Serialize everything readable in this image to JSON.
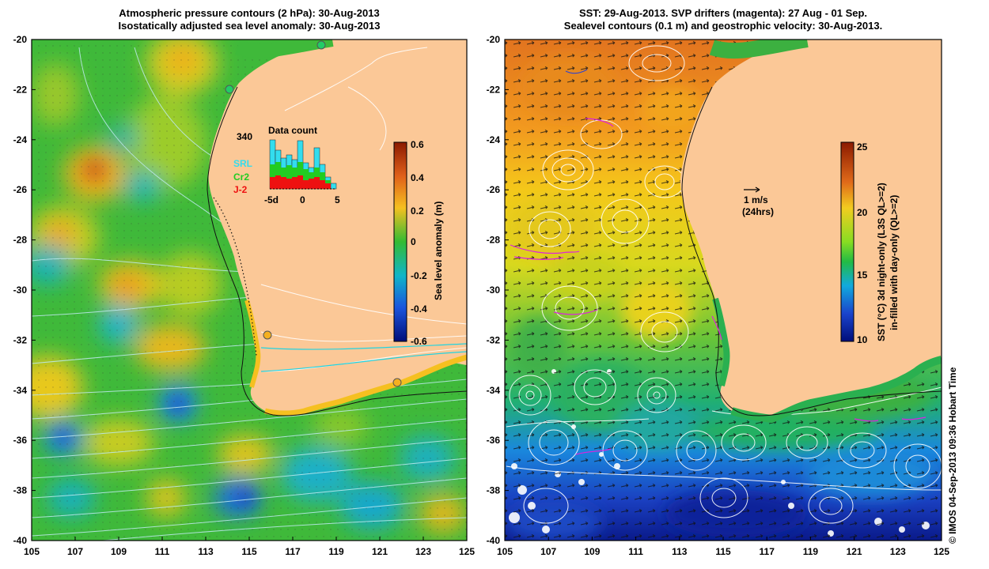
{
  "left_panel": {
    "title_line1": "Atmospheric pressure contours (2 hPa): 30-Aug-2013",
    "title_line2": "Isostatically adjusted sea level anomaly: 30-Aug-2013",
    "colorbar_label": "Sea level anomaly (m)",
    "colorbar_ticks": [
      "0.6",
      "0.4",
      "0.2",
      "0",
      "-0.2",
      "-0.4",
      "-0.6"
    ],
    "inset": {
      "title": "Data count",
      "max_label": "340",
      "x_ticks": [
        "-5d",
        "0",
        "5"
      ],
      "legend": [
        {
          "label": "SRL",
          "color": "#33ddee"
        },
        {
          "label": "Cr2",
          "color": "#22cc22"
        },
        {
          "label": "J-2",
          "color": "#ee1111"
        }
      ]
    }
  },
  "right_panel": {
    "title_line1": "SST: 29-Aug-2013. SVP drifters (magenta): 27 Aug - 01 Sep.",
    "title_line2": "Sealevel contours (0.1 m) and geostrophic velocity: 30-Aug-2013.",
    "colorbar_label_line1": "SST (°C) 3d night-only (L3S QL>=2)",
    "colorbar_label_line2": "in-filled with day-only (QL>=2)",
    "colorbar_ticks": [
      "25",
      "20",
      "15",
      "10"
    ],
    "velocity_key_line1": "1 m/s",
    "velocity_key_line2": "(24hrs)"
  },
  "axes": {
    "x_ticks": [
      "105",
      "107",
      "109",
      "111",
      "113",
      "115",
      "117",
      "119",
      "121",
      "123",
      "125"
    ],
    "y_ticks": [
      "-20",
      "-22",
      "-24",
      "-26",
      "-28",
      "-30",
      "-32",
      "-34",
      "-36",
      "-38",
      "-40"
    ]
  },
  "colors": {
    "land": "#fbc897",
    "ocean_base": "#44bb44"
  },
  "credit": "© IMOS 04-Sep-2013 09:36 Hobart Time"
}
